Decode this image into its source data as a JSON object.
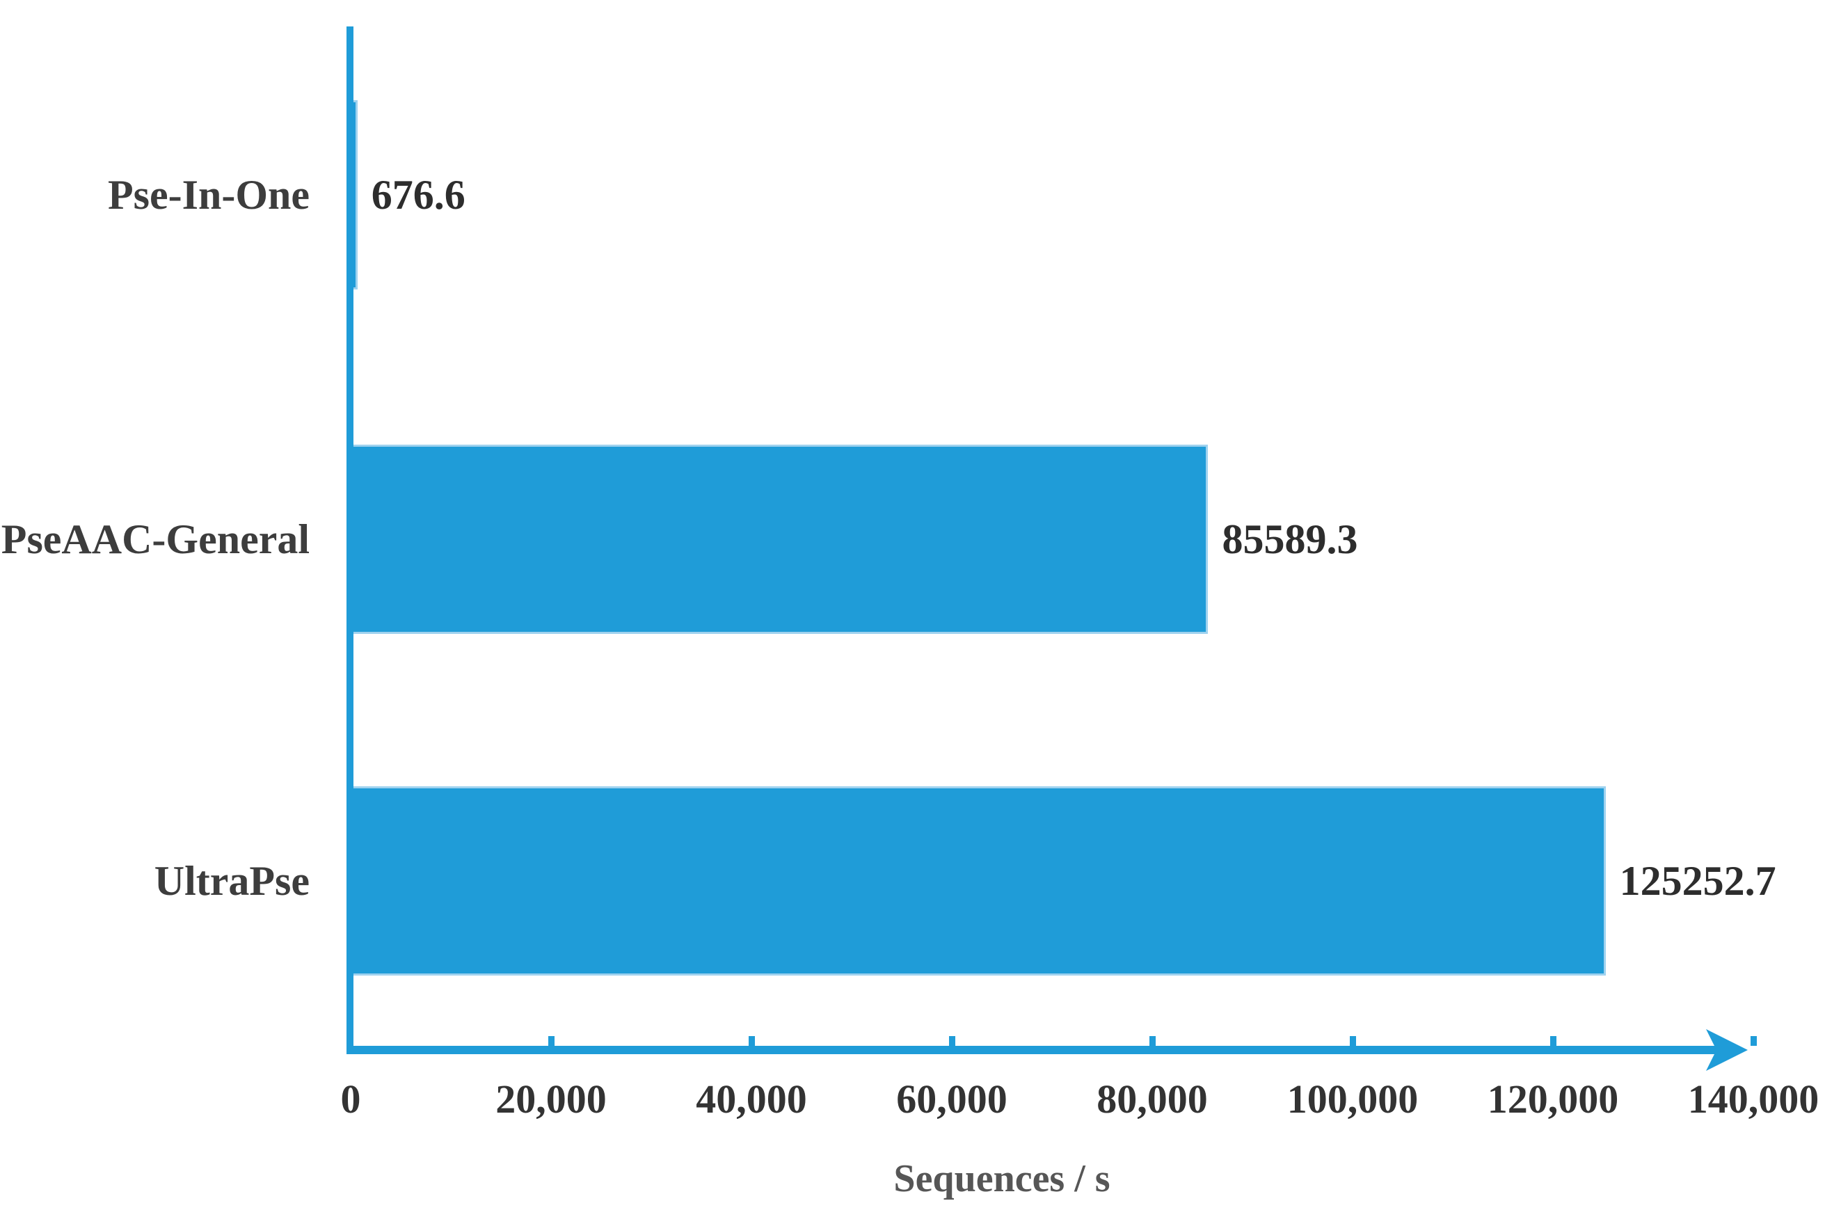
{
  "chart_data": {
    "type": "bar",
    "orientation": "horizontal",
    "categories": [
      "Pse-In-One",
      "PseAAC-General",
      "UltraPse"
    ],
    "values": [
      676.6,
      85589.3,
      125252.7
    ],
    "value_labels": [
      "676.6",
      "85589.3",
      "125252.7"
    ],
    "title": "",
    "xlabel": "Sequences / s",
    "ylabel": "",
    "xlim": [
      0,
      140000
    ],
    "xticks": [
      0,
      20000,
      40000,
      60000,
      80000,
      100000,
      120000,
      140000
    ],
    "xtick_labels": [
      "0",
      "20,000",
      "40,000",
      "60,000",
      "80,000",
      "100,000",
      "120,000",
      "140,000"
    ],
    "grid": false,
    "legend": "none",
    "bar_color": "#1F9CD8",
    "axis_color": "#1F9CD8",
    "value_label_color": "#2d2d2d",
    "category_label_color": "#3d3d3d",
    "axis_title_color": "#565656"
  }
}
